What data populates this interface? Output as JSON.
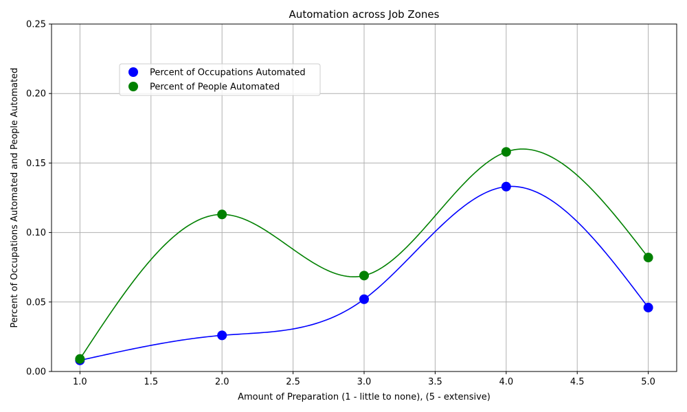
{
  "chart_data": {
    "type": "scatter",
    "title": "Automation across Job Zones",
    "xlabel": "Amount of Preparation (1 - little to none), (5 - extensive)",
    "ylabel": "Percent of Occupations Automated and People Automated",
    "xlim": [
      0.8,
      5.2
    ],
    "ylim": [
      0,
      0.25
    ],
    "xticks": [
      1.0,
      1.5,
      2.0,
      2.5,
      3.0,
      3.5,
      4.0,
      4.5,
      5.0
    ],
    "xtick_labels": [
      "1.0",
      "1.5",
      "2.0",
      "2.5",
      "3.0",
      "3.5",
      "4.0",
      "4.5",
      "5.0"
    ],
    "yticks": [
      0.0,
      0.05,
      0.1,
      0.15,
      0.2,
      0.25
    ],
    "ytick_labels": [
      "0.00",
      "0.05",
      "0.10",
      "0.15",
      "0.20",
      "0.25"
    ],
    "grid": true,
    "legend_position": "upper-left",
    "series": [
      {
        "name": "Percent of Occupations Automated",
        "color": "#0000ff",
        "x": [
          1,
          2,
          3,
          4,
          5
        ],
        "y": [
          0.008,
          0.026,
          0.052,
          0.133,
          0.046
        ]
      },
      {
        "name": "Percent of People Automated",
        "color": "#008000",
        "x": [
          1,
          2,
          3,
          4,
          5
        ],
        "y": [
          0.009,
          0.113,
          0.069,
          0.158,
          0.082
        ]
      }
    ]
  }
}
